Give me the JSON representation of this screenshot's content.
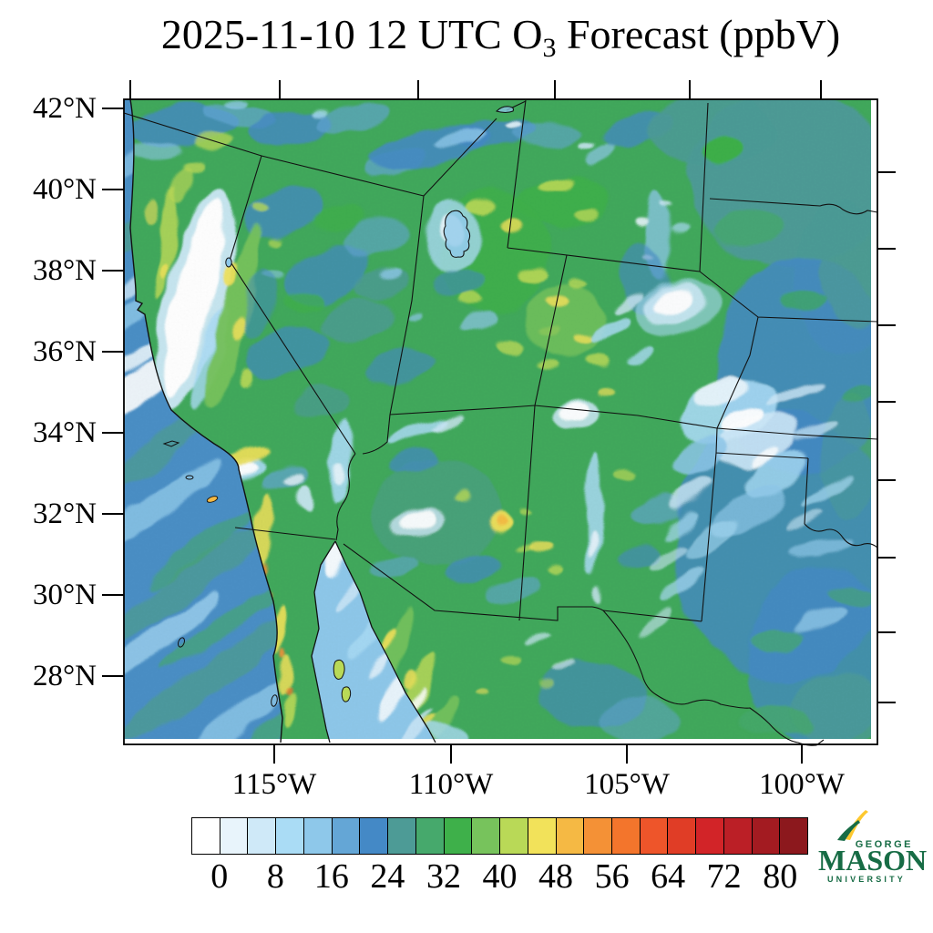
{
  "title": {
    "main": "2025-11-10 12 UTC O",
    "sub": "3",
    "tail": " Forecast (ppbV)"
  },
  "map": {
    "lat_tick_labels": [
      "42°N",
      "40°N",
      "38°N",
      "36°N",
      "34°N",
      "32°N",
      "30°N",
      "28°N"
    ],
    "lon_tick_labels": [
      "115°W",
      "110°W",
      "105°W",
      "100°W"
    ],
    "region": "Southwestern United States and northern Mexico"
  },
  "colorbar": {
    "tick_labels": [
      "0",
      "8",
      "16",
      "24",
      "32",
      "40",
      "48",
      "56",
      "64",
      "72",
      "80"
    ],
    "cell_colors": [
      "#ffffff",
      "#e8f4fb",
      "#cfe9f8",
      "#aadcf5",
      "#8ec8ea",
      "#64a6d6",
      "#4489c6",
      "#4d9b96",
      "#46a96c",
      "#3eb04a",
      "#77c35c",
      "#b9d957",
      "#f2e25a",
      "#f5b944",
      "#f49136",
      "#f3752c",
      "#ee552a",
      "#e03d26",
      "#d22428",
      "#bb1f26",
      "#a31b21",
      "#8c181d"
    ]
  },
  "logo": {
    "top": "GEORGE",
    "name": "MASON",
    "bottom": "UNIVERSITY",
    "green": "#176c45",
    "gold": "#fdc82f"
  },
  "chart_data": {
    "type": "heatmap",
    "title": "2025-11-10 12 UTC O3 Forecast (ppbV)",
    "variable": "Surface ozone mixing ratio forecast",
    "units": "ppbV",
    "x": {
      "label": "Longitude",
      "tick_labels": [
        "115°W",
        "110°W",
        "105°W",
        "100°W"
      ]
    },
    "y": {
      "label": "Latitude",
      "tick_labels": [
        "42°N",
        "40°N",
        "38°N",
        "36°N",
        "34°N",
        "32°N",
        "30°N",
        "28°N"
      ]
    },
    "colorbar": {
      "orientation": "horizontal",
      "tick_values": [
        0,
        8,
        16,
        24,
        32,
        40,
        48,
        56,
        64,
        72,
        80
      ],
      "bin_width_ppbv": 4,
      "n_cells": 22
    },
    "legend_position": "bottom",
    "grid": false,
    "notable_features": [
      "Green 28-40 ppbV values over most mountain/interior West",
      "Yellow 40-48 ppbV ridges over Sierra Nevada, Utah, Colorado and Mexican Sierra Madre",
      "White <8 ppbV filament along California Central Valley and in valley drainages",
      "Blue 16-24 ppbV over Great Plains and Texas with pale filaments in the panhandle",
      "State borders, coastline, Gulf of California and Rio Grande visible"
    ]
  }
}
